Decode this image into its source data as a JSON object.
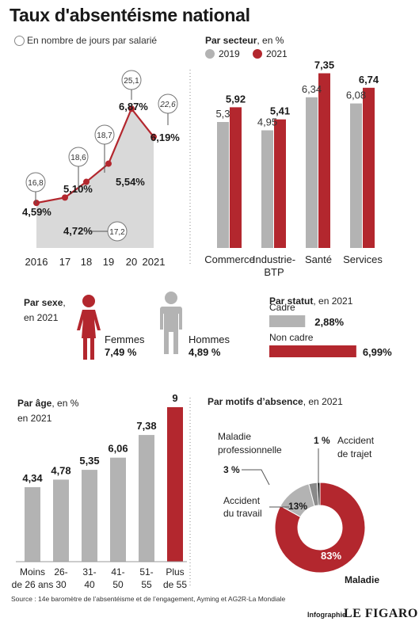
{
  "title": "Taux d'absentéisme national",
  "subtitle": "En nombre de jours par salarié",
  "colors": {
    "grey": "#b3b3b3",
    "red": "#b3272e",
    "area": "#d9d9d9"
  },
  "chart_data": [
    {
      "type": "area",
      "name": "national",
      "categories": [
        "2016",
        "17",
        "18",
        "19",
        "20",
        "2021"
      ],
      "values": [
        4.59,
        4.72,
        5.1,
        5.54,
        6.87,
        6.19
      ],
      "labels": [
        "4,59%",
        "4,72%",
        "5,10%",
        "5,54%",
        "6,87%",
        "6,19%"
      ],
      "days": [
        "16,8",
        "17,2",
        "18,6",
        "18,7",
        "25,1",
        "22,6"
      ],
      "ylim": [
        3.5,
        7.2
      ]
    },
    {
      "type": "bar",
      "name": "secteur",
      "title": "Par secteur",
      "title_suffix": ", en %",
      "categories": [
        "Commerce",
        "Industrie-BTP",
        "Santé",
        "Services"
      ],
      "category_lines": [
        [
          "Commerce"
        ],
        [
          "Industrie-",
          "BTP"
        ],
        [
          "Santé"
        ],
        [
          "Services"
        ]
      ],
      "series": [
        {
          "name": "2019",
          "values": [
            5.3,
            4.95,
            6.34,
            6.08
          ],
          "labels": [
            "5,3",
            "4,95",
            "6,34",
            "6,08"
          ]
        },
        {
          "name": "2021",
          "values": [
            5.92,
            5.41,
            7.35,
            6.74
          ],
          "labels": [
            "5,92",
            "5,41",
            "7,35",
            "6,74"
          ]
        }
      ],
      "ylim": [
        0,
        8
      ]
    },
    {
      "type": "bar",
      "name": "age",
      "title": "Par âge",
      "title_suffix": ", en %",
      "title_line2": "en 2021",
      "categories": [
        "Moins de 26 ans",
        "26-30",
        "31-40",
        "41-50",
        "51-55",
        "Plus de 55"
      ],
      "category_lines": [
        [
          "Moins",
          "de 26 ans"
        ],
        [
          "26-",
          "30"
        ],
        [
          "31-",
          "40"
        ],
        [
          "41-",
          "50"
        ],
        [
          "51-",
          "55"
        ],
        [
          "Plus",
          "de 55"
        ]
      ],
      "values": [
        4.34,
        4.78,
        5.35,
        6.06,
        7.38,
        9
      ],
      "labels": [
        "4,34",
        "4,78",
        "5,35",
        "6,06",
        "7,38",
        "9"
      ],
      "ylim": [
        0,
        9
      ]
    },
    {
      "type": "pie",
      "name": "motifs",
      "title": "Par motifs d’absence",
      "title_suffix": ", en 2021",
      "slices": [
        {
          "name": "Maladie",
          "value": 83,
          "label": "83%"
        },
        {
          "name": "Accident du travail",
          "value": 13,
          "label": "13%"
        },
        {
          "name": "Maladie professionnelle",
          "value": 3,
          "label": "3 %"
        },
        {
          "name": "Accident de trajet",
          "value": 1,
          "label": "1 %"
        }
      ]
    }
  ],
  "sexe": {
    "title": "Par sexe",
    "title_suffix": ",",
    "title_line2": "en 2021",
    "femmes_label": "Femmes",
    "femmes_value": "7,49 %",
    "hommes_label": "Hommes",
    "hommes_value": "4,89 %"
  },
  "statut": {
    "title": "Par statut",
    "title_suffix": ", en 2021",
    "rows": [
      {
        "name": "Cadre",
        "value": 2.88,
        "label": "2,88%"
      },
      {
        "name": "Non cadre",
        "value": 6.99,
        "label": "6,99%"
      }
    ]
  },
  "footer": {
    "source": "Source : 14e baromètre de l’absentéisme et de l’engagement, Ayming et AG2R-La Mondiale",
    "credit": "Infographie",
    "brand": "LE FIGARO"
  }
}
